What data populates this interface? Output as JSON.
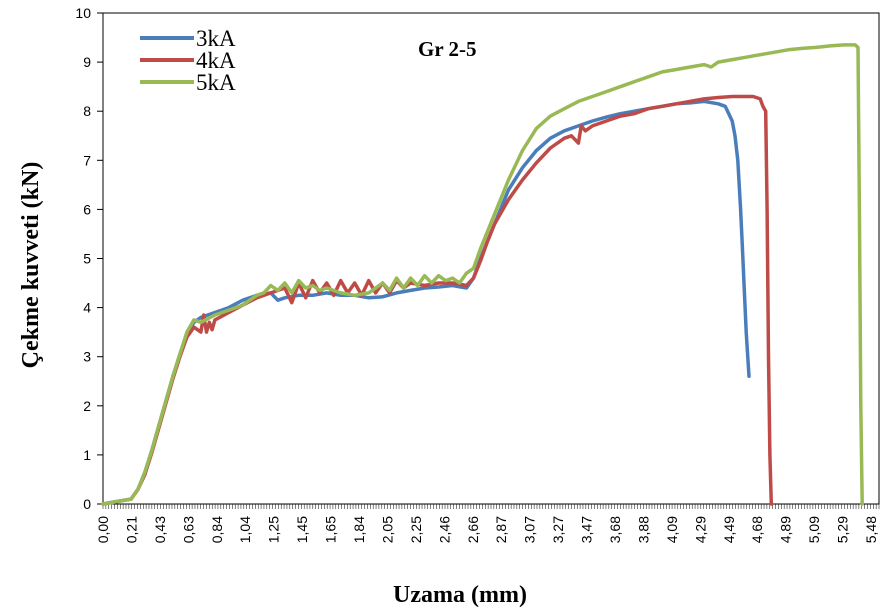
{
  "chart_data": {
    "type": "line",
    "title": "Gr 2-5",
    "xlabel": "Uzama (mm)",
    "ylabel": "Çekme kuvveti (kN)",
    "xlim": [
      0,
      5.55
    ],
    "ylim": [
      0,
      10
    ],
    "yticks": [
      0,
      1,
      2,
      3,
      4,
      5,
      6,
      7,
      8,
      9,
      10
    ],
    "xtick_labels": [
      "0,00",
      "0,21",
      "0,43",
      "0,63",
      "0,84",
      "1,04",
      "1,25",
      "1,45",
      "1,65",
      "1,84",
      "2,05",
      "2,25",
      "2,46",
      "2,66",
      "2,87",
      "3,07",
      "3,27",
      "3,47",
      "3,68",
      "3,88",
      "4,09",
      "4,29",
      "4,49",
      "4,68",
      "4,89",
      "5,09",
      "5,29",
      "5,48"
    ],
    "grid": false,
    "legend_position": "top-left",
    "series": [
      {
        "name": "3kA",
        "color": "#4a7ebb",
        "x": [
          0.0,
          0.1,
          0.2,
          0.25,
          0.3,
          0.35,
          0.4,
          0.45,
          0.5,
          0.55,
          0.6,
          0.65,
          0.7,
          0.8,
          0.9,
          1.0,
          1.1,
          1.2,
          1.25,
          1.3,
          1.4,
          1.5,
          1.6,
          1.7,
          1.8,
          1.9,
          2.0,
          2.1,
          2.2,
          2.3,
          2.4,
          2.5,
          2.6,
          2.65,
          2.7,
          2.8,
          2.9,
          3.0,
          3.1,
          3.2,
          3.3,
          3.4,
          3.5,
          3.6,
          3.7,
          3.8,
          3.9,
          4.0,
          4.1,
          4.2,
          4.3,
          4.4,
          4.45,
          4.5,
          4.52,
          4.54,
          4.55,
          4.56,
          4.57,
          4.6,
          4.62
        ],
        "y": [
          0.0,
          0.05,
          0.1,
          0.3,
          0.65,
          1.1,
          1.6,
          2.1,
          2.6,
          3.05,
          3.45,
          3.7,
          3.8,
          3.9,
          4.0,
          4.15,
          4.25,
          4.3,
          4.15,
          4.2,
          4.25,
          4.25,
          4.3,
          4.25,
          4.25,
          4.2,
          4.22,
          4.3,
          4.35,
          4.4,
          4.42,
          4.45,
          4.4,
          4.6,
          5.0,
          5.7,
          6.4,
          6.85,
          7.2,
          7.45,
          7.6,
          7.7,
          7.8,
          7.88,
          7.95,
          8.0,
          8.05,
          8.1,
          8.15,
          8.17,
          8.2,
          8.15,
          8.1,
          7.8,
          7.5,
          7.0,
          6.5,
          6.0,
          5.4,
          3.5,
          2.6
        ]
      },
      {
        "name": "4kA",
        "color": "#be4b48",
        "x": [
          0.0,
          0.1,
          0.2,
          0.25,
          0.3,
          0.35,
          0.4,
          0.45,
          0.5,
          0.55,
          0.6,
          0.65,
          0.7,
          0.72,
          0.74,
          0.76,
          0.78,
          0.8,
          0.9,
          1.0,
          1.1,
          1.2,
          1.3,
          1.35,
          1.4,
          1.45,
          1.5,
          1.55,
          1.6,
          1.65,
          1.7,
          1.75,
          1.8,
          1.85,
          1.9,
          1.95,
          2.0,
          2.05,
          2.1,
          2.15,
          2.2,
          2.3,
          2.4,
          2.5,
          2.6,
          2.65,
          2.7,
          2.75,
          2.8,
          2.9,
          3.0,
          3.1,
          3.2,
          3.3,
          3.35,
          3.4,
          3.42,
          3.45,
          3.5,
          3.6,
          3.7,
          3.8,
          3.9,
          4.0,
          4.1,
          4.2,
          4.3,
          4.4,
          4.5,
          4.6,
          4.65,
          4.7,
          4.72,
          4.74,
          4.75,
          4.76,
          4.77,
          4.78
        ],
        "y": [
          0.0,
          0.05,
          0.1,
          0.3,
          0.6,
          1.05,
          1.55,
          2.05,
          2.55,
          3.0,
          3.4,
          3.6,
          3.5,
          3.85,
          3.5,
          3.7,
          3.55,
          3.75,
          3.9,
          4.05,
          4.2,
          4.3,
          4.4,
          4.1,
          4.5,
          4.2,
          4.55,
          4.3,
          4.5,
          4.25,
          4.55,
          4.3,
          4.5,
          4.25,
          4.55,
          4.3,
          4.5,
          4.3,
          4.55,
          4.4,
          4.5,
          4.45,
          4.5,
          4.5,
          4.45,
          4.6,
          4.95,
          5.35,
          5.7,
          6.2,
          6.6,
          6.95,
          7.25,
          7.45,
          7.5,
          7.35,
          7.7,
          7.6,
          7.7,
          7.8,
          7.9,
          7.95,
          8.05,
          8.1,
          8.15,
          8.2,
          8.25,
          8.28,
          8.3,
          8.3,
          8.3,
          8.25,
          8.1,
          8.0,
          6.0,
          3.0,
          1.0,
          0.0
        ]
      },
      {
        "name": "5kA",
        "color": "#98b954",
        "x": [
          0.0,
          0.1,
          0.2,
          0.25,
          0.3,
          0.35,
          0.4,
          0.45,
          0.5,
          0.55,
          0.6,
          0.65,
          0.7,
          0.8,
          0.9,
          1.0,
          1.1,
          1.15,
          1.2,
          1.25,
          1.3,
          1.35,
          1.4,
          1.45,
          1.5,
          1.55,
          1.6,
          1.7,
          1.8,
          1.9,
          2.0,
          2.05,
          2.1,
          2.15,
          2.2,
          2.25,
          2.3,
          2.35,
          2.4,
          2.45,
          2.5,
          2.55,
          2.6,
          2.65,
          2.7,
          2.8,
          2.9,
          3.0,
          3.1,
          3.2,
          3.3,
          3.4,
          3.5,
          3.6,
          3.7,
          3.8,
          3.9,
          4.0,
          4.1,
          4.2,
          4.3,
          4.35,
          4.4,
          4.5,
          4.6,
          4.7,
          4.8,
          4.9,
          5.0,
          5.1,
          5.2,
          5.3,
          5.38,
          5.4,
          5.41,
          5.42,
          5.43
        ],
        "y": [
          0.0,
          0.05,
          0.1,
          0.3,
          0.65,
          1.1,
          1.6,
          2.1,
          2.6,
          3.05,
          3.5,
          3.75,
          3.7,
          3.85,
          3.95,
          4.05,
          4.25,
          4.3,
          4.45,
          4.35,
          4.5,
          4.3,
          4.55,
          4.4,
          4.45,
          4.35,
          4.4,
          4.3,
          4.25,
          4.3,
          4.5,
          4.35,
          4.6,
          4.4,
          4.6,
          4.45,
          4.65,
          4.5,
          4.65,
          4.55,
          4.6,
          4.5,
          4.7,
          4.8,
          5.2,
          5.9,
          6.6,
          7.2,
          7.65,
          7.9,
          8.05,
          8.2,
          8.3,
          8.4,
          8.5,
          8.6,
          8.7,
          8.8,
          8.85,
          8.9,
          8.95,
          8.9,
          9.0,
          9.05,
          9.1,
          9.15,
          9.2,
          9.25,
          9.28,
          9.3,
          9.33,
          9.35,
          9.35,
          9.3,
          6.0,
          2.0,
          0.0
        ]
      }
    ]
  }
}
